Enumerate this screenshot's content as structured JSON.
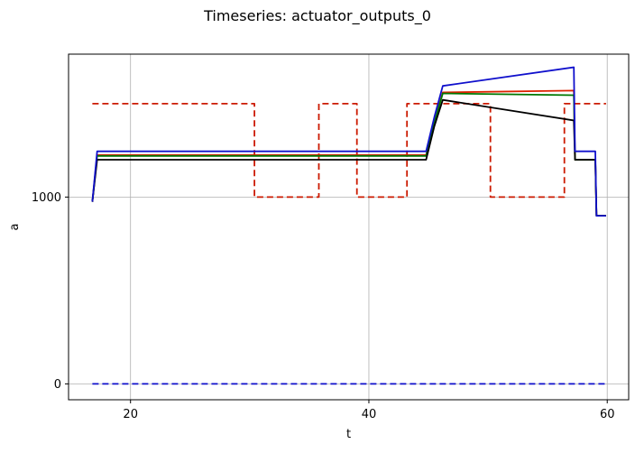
{
  "chart_data": {
    "type": "line",
    "title": "Timeseries: actuator_outputs_0",
    "xlabel": "t",
    "ylabel": "a",
    "xlim": [
      14.8,
      61.8
    ],
    "ylim": [
      -85,
      1765
    ],
    "grid": true,
    "x_ticks": [
      20,
      40,
      60
    ],
    "y_ticks": [
      0,
      1000
    ],
    "colors": {
      "blue": "#1010cc",
      "red": "#dd2200",
      "green": "#007700",
      "black": "#000000"
    },
    "series": [
      {
        "style": "dashed",
        "color": "#cc1a00",
        "x": [
          16.8,
          30.4,
          30.4,
          35.8,
          35.8,
          39.0,
          39.0,
          43.2,
          43.2,
          50.2,
          50.2,
          56.4,
          56.4,
          59.9
        ],
        "y": [
          1500,
          1500,
          1000,
          1000,
          1500,
          1500,
          1000,
          1000,
          1500,
          1500,
          1000,
          1000,
          1500,
          1500
        ]
      },
      {
        "style": "dashed",
        "color": "#1010cc",
        "x": [
          16.8,
          59.9
        ],
        "y": [
          0,
          0
        ]
      },
      {
        "style": "solid",
        "color": "#dd2200",
        "x": [
          16.8,
          17.2,
          44.8,
          45.5,
          46.2,
          57.2,
          57.3,
          59.0,
          59.1,
          59.9
        ],
        "y": [
          975,
          1225,
          1225,
          1400,
          1560,
          1570,
          1200,
          1200,
          900,
          900
        ]
      },
      {
        "style": "solid",
        "color": "#007700",
        "x": [
          16.8,
          17.2,
          44.8,
          45.5,
          46.2,
          57.2,
          57.3,
          59.0,
          59.1,
          59.9
        ],
        "y": [
          975,
          1220,
          1220,
          1400,
          1555,
          1545,
          1200,
          1200,
          900,
          900
        ]
      },
      {
        "style": "solid",
        "color": "#000000",
        "x": [
          16.8,
          17.2,
          44.8,
          45.5,
          46.2,
          57.2,
          57.3,
          59.0,
          59.1,
          59.9
        ],
        "y": [
          975,
          1200,
          1200,
          1380,
          1520,
          1410,
          1200,
          1200,
          900,
          900
        ]
      },
      {
        "style": "solid",
        "color": "#1010cc",
        "x": [
          16.8,
          17.2,
          44.8,
          45.5,
          46.2,
          57.2,
          57.3,
          59.0,
          59.1,
          59.9
        ],
        "y": [
          975,
          1245,
          1245,
          1430,
          1595,
          1695,
          1245,
          1245,
          900,
          900
        ]
      }
    ]
  }
}
